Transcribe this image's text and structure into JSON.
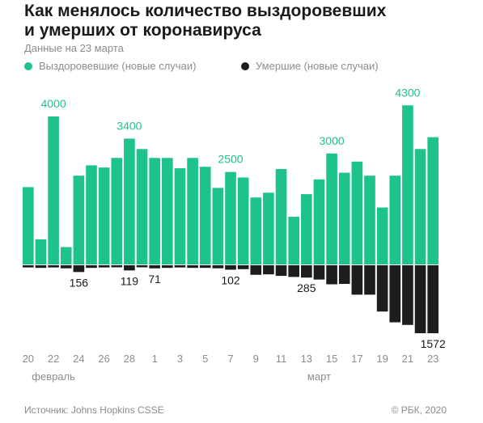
{
  "title_line1": "Как менялось количество выздоровевших",
  "title_line2": "и умерших от коронавируса",
  "subtitle": "Данные на 23 марта",
  "legend": {
    "recovered": "Выздоровевшие (новые случаи)",
    "deaths": "Умершие (новые случаи)"
  },
  "colors": {
    "recovered": "#1ec38c",
    "deaths": "#1d1d1d",
    "label_recovered": "#1ec38c",
    "label_deaths": "#1a1a1a"
  },
  "source": "Источник: Johns Hopkins CSSE",
  "copyright": "© РБК, 2020",
  "chart_data": {
    "type": "bar",
    "categories": [
      "20",
      "21",
      "22",
      "23",
      "24",
      "25",
      "26",
      "27",
      "28",
      "29",
      "1",
      "2",
      "3",
      "4",
      "5",
      "6",
      "7",
      "8",
      "9",
      "10",
      "11",
      "12",
      "13",
      "14",
      "15",
      "16",
      "17",
      "18",
      "19",
      "20",
      "21",
      "22",
      "23"
    ],
    "tick_labels": [
      "20",
      "22",
      "24",
      "26",
      "28",
      "1",
      "3",
      "5",
      "7",
      "9",
      "11",
      "13",
      "15",
      "17",
      "19",
      "21",
      "23"
    ],
    "month_labels": [
      {
        "label": "февраль",
        "at_category_index": 2
      },
      {
        "label": "март",
        "at_category_index": 23
      }
    ],
    "series": [
      {
        "name": "Выздоровевшие (новые случаи)",
        "values": [
          2090,
          680,
          4000,
          470,
          2400,
          2680,
          2620,
          2880,
          3400,
          3120,
          2880,
          2880,
          2600,
          2880,
          2640,
          2070,
          2500,
          2350,
          1810,
          1940,
          2580,
          1290,
          1900,
          2300,
          3000,
          2480,
          2780,
          2400,
          1540,
          2400,
          4300,
          3120,
          3440
        ]
      },
      {
        "name": "Умершие (новые случаи)",
        "values": [
          50,
          60,
          50,
          70,
          156,
          60,
          50,
          40,
          119,
          40,
          71,
          60,
          50,
          60,
          60,
          70,
          102,
          90,
          220,
          210,
          245,
          270,
          285,
          330,
          440,
          430,
          680,
          680,
          1070,
          1320,
          1380,
          1572,
          1572
        ]
      }
    ],
    "annotations": [
      {
        "series": "Выздоровевшие (новые случаи)",
        "category_index": 2,
        "text": "4000"
      },
      {
        "series": "Выздоровевшие (новые случаи)",
        "category_index": 8,
        "text": "3400"
      },
      {
        "series": "Выздоровевшие (новые случаи)",
        "category_index": 16,
        "text": "2500"
      },
      {
        "series": "Выздоровевшие (новые случаи)",
        "category_index": 24,
        "text": "3000"
      },
      {
        "series": "Выздоровевшие (новые случаи)",
        "category_index": 30,
        "text": "4300"
      },
      {
        "series": "Умершие (новые случаи)",
        "category_index": 4,
        "text": "156"
      },
      {
        "series": "Умершие (новые случаи)",
        "category_index": 8,
        "text": "119"
      },
      {
        "series": "Умершие (новые случаи)",
        "category_index": 10,
        "text": "71"
      },
      {
        "series": "Умершие (новые случаи)",
        "category_index": 16,
        "text": "102"
      },
      {
        "series": "Умершие (новые случаи)",
        "category_index": 22,
        "text": "285"
      },
      {
        "series": "Умершие (новые случаи)",
        "category_index": 32,
        "text": "1572"
      }
    ],
    "grid": false,
    "legend_position": "top-left"
  }
}
